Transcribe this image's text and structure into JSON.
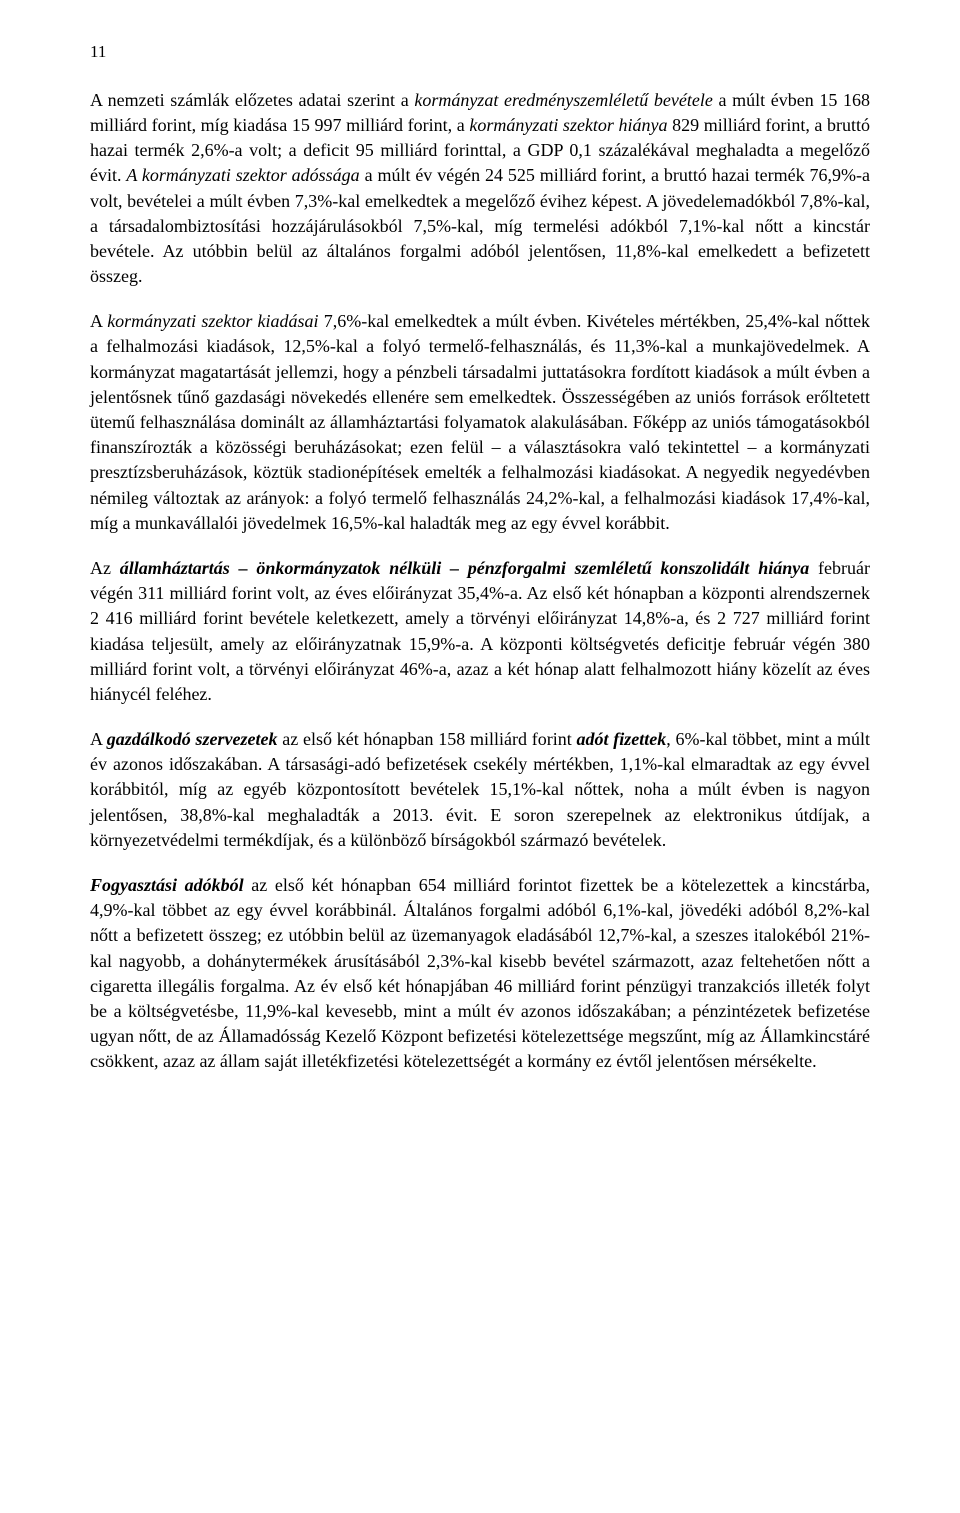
{
  "pageNumber": "11",
  "paragraphs": {
    "p1": {
      "s1_plain_a": "A nemzeti számlák előzetes adatai szerint a ",
      "s1_italic_a": "kormányzat eredményszemléletű bevétele",
      "s1_plain_b": " a múlt évben 15 168 milliárd forint, míg kiadása 15 997 milliárd forint, a ",
      "s1_italic_b": "kormányzati szektor hiánya",
      "s1_plain_c": " 829 milliárd forint, a bruttó hazai termék 2,6%-a volt; a deficit 95 milliárd forinttal, a GDP 0,1 százalékával meghaladta a megelőző évit. ",
      "s2_italic": "A kormányzati szektor adóssága",
      "s2_plain": " a múlt év végén 24 525 milliárd forint, a bruttó hazai termék 76,9%-a volt, bevételei a múlt évben 7,3%-kal emelkedtek a megelőző évihez képest. A jövedelemadókból 7,8%-kal, a társadalombiztosítási hozzájárulásokból 7,5%-kal, míg termelési adókból 7,1%-kal nőtt a kincstár bevétele. Az utóbbin belül az általános forgalmi adóból jelentősen, 11,8%-kal emelkedett a befizetett összeg."
    },
    "p2": {
      "s1_plain_a": "A ",
      "s1_italic": "kormányzati szektor kiadásai",
      "s1_plain_b": " 7,6%-kal emelkedtek a múlt évben. Kivételes mértékben, 25,4%-kal nőttek a felhalmozási kiadások, 12,5%-kal a folyó termelő-felhasználás, és 11,3%-kal a munkajövedelmek. A kormányzat magatartását jellemzi, hogy a pénzbeli társadalmi juttatásokra fordított kiadások a múlt évben a jelentősnek tűnő gazdasági növekedés ellenére sem emelkedtek. Összességében az uniós források erőltetett ütemű felhasználása dominált az államháztartási folyamatok alakulásában. Főképp az uniós támogatásokból finanszírozták a közösségi beruházásokat; ezen felül – a választásokra való tekintettel – a kormányzati presztízsberuházások, köztük stadionépítések emelték a felhalmozási kiadásokat. A negyedik negyedévben némileg változtak az arányok: a folyó termelő felhasználás 24,2%-kal, a felhalmozási kiadások 17,4%-kal, míg a munkavállalói jövedelmek 16,5%-kal haladták meg az egy évvel korábbit."
    },
    "p3": {
      "s1_plain_a": "Az ",
      "s1_bolditalic": "államháztartás – önkormányzatok nélküli – pénzforgalmi szemléletű konszolidált hiánya",
      "s1_plain_b": " február végén 311 milliárd forint volt, az éves előirányzat 35,4%-a. Az első két hónapban a központi alrendszernek 2 416 milliárd forint bevétele keletkezett, amely a törvényi előirányzat 14,8%-a, és 2 727 milliárd forint kiadása teljesült, amely az előirányzatnak 15,9%-a. A központi költségvetés deficitje február végén 380 milliárd forint volt, a törvényi előirányzat 46%-a, azaz a két hónap alatt felhalmozott hiány közelít az éves hiánycél feléhez."
    },
    "p4": {
      "s1_plain_a": "A ",
      "s1_bolditalic_a": "gazdálkodó szervezetek",
      "s1_plain_b": " az első két hónapban 158 milliárd forint ",
      "s1_bolditalic_b": "adót fizettek",
      "s1_plain_c": ", 6%-kal többet, mint a múlt év azonos időszakában. A társasági-adó befizetések csekély mértékben, 1,1%-kal elmaradtak az egy évvel korábbitól, míg az egyéb központosított bevételek 15,1%-kal nőttek, noha a múlt évben is nagyon jelentősen, 38,8%-kal meghaladták a 2013. évit. E soron szerepelnek az elektronikus útdíjak, a környezetvédelmi termékdíjak, és a különböző bírságokból származó bevételek."
    },
    "p5": {
      "s1_bolditalic": "Fogyasztási adókból",
      "s1_plain": " az első két hónapban 654 milliárd forintot fizettek be a kötelezettek a kincstárba, 4,9%-kal többet az egy évvel korábbinál. Általános forgalmi adóból 6,1%-kal, jövedéki adóból 8,2%-kal nőtt a befizetett összeg; ez utóbbin belül az üzemanyagok eladásából 12,7%-kal, a szeszes italokéból 21%-kal nagyobb, a dohánytermékek árusításából 2,3%-kal kisebb bevétel származott, azaz feltehetően nőtt a cigaretta illegális forgalma.  Az év első két hónapjában 46 milliárd forint pénzügyi tranzakciós illeték folyt be a költségvetésbe, 11,9%-kal kevesebb, mint a múlt év azonos időszakában; a pénzintézetek befizetése ugyan nőtt, de az Államadósság Kezelő Központ befizetési kötelezettsége megszűnt, míg az Államkincstáré csökkent, azaz az állam saját illetékfizetési kötelezettségét a kormány ez évtől jelentősen mérsékelte."
    }
  }
}
